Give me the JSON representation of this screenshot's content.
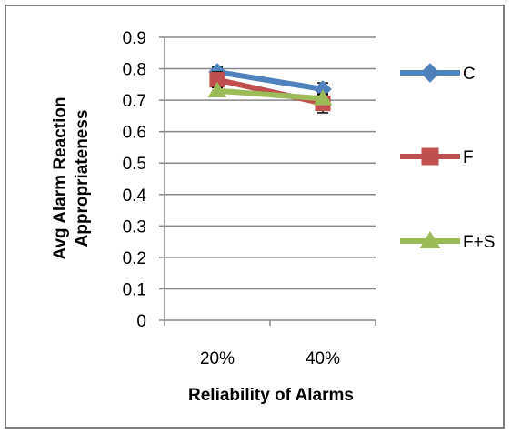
{
  "chart_data": {
    "type": "line",
    "categories": [
      "20%",
      "40%"
    ],
    "series": [
      {
        "name": "C",
        "values": [
          0.79,
          0.735
        ],
        "error": [
          0.015,
          0.02
        ],
        "color": "#4f81bd",
        "marker": "diamond"
      },
      {
        "name": "F",
        "values": [
          0.765,
          0.69
        ],
        "error": [
          0.025,
          0.03
        ],
        "color": "#c0504d",
        "marker": "square"
      },
      {
        "name": "F+S",
        "values": [
          0.73,
          0.705
        ],
        "error": [
          0.01,
          0.015
        ],
        "color": "#9bbb59",
        "marker": "triangle"
      }
    ],
    "xlabel": "Reliability of Alarms",
    "ylabel": [
      "Avg Alarm Reaction",
      "Appropriateness"
    ],
    "ylim": [
      0,
      0.9
    ],
    "yticks": [
      "0",
      "0.1",
      "0.2",
      "0.3",
      "0.4",
      "0.5",
      "0.6",
      "0.7",
      "0.8",
      "0.9"
    ],
    "grid": true,
    "legend": "right"
  }
}
